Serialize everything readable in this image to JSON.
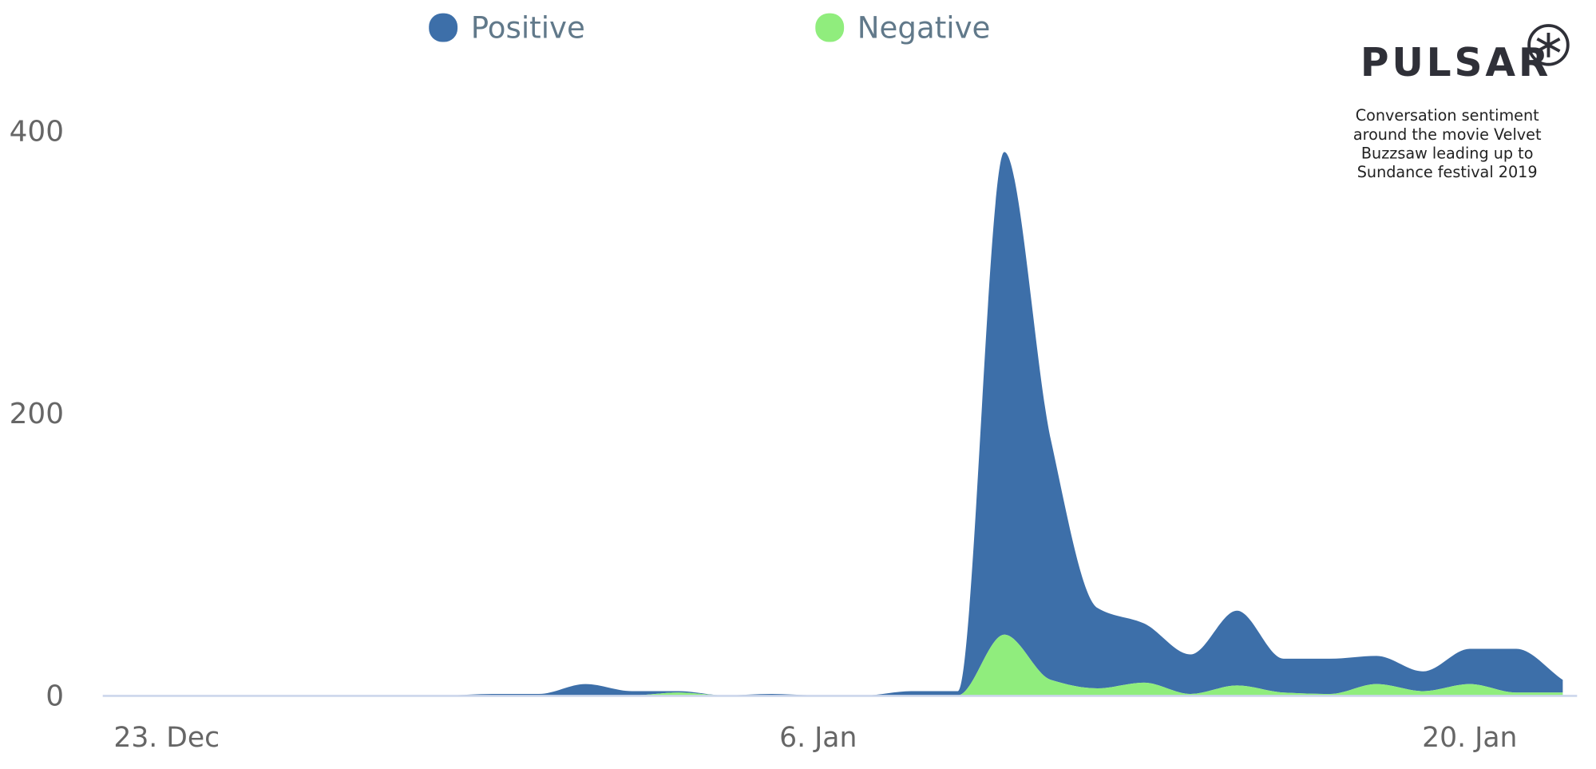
{
  "chart_data": {
    "type": "stacked-area",
    "logo": "PULSAR",
    "subtitle": [
      "Conversation sentiment",
      "around the movie Velvet",
      "Buzzsaw leading up to",
      "Sundance festival 2019"
    ],
    "categories": [
      null,
      "23. Dec",
      null,
      null,
      null,
      null,
      null,
      null,
      null,
      null,
      null,
      null,
      null,
      null,
      null,
      "6. Jan",
      null,
      null,
      null,
      null,
      null,
      null,
      null,
      null,
      null,
      null,
      null,
      null,
      null,
      "20. Jan",
      null,
      null
    ],
    "series": [
      {
        "name": "Positive",
        "color": "#3d6fa9",
        "values": [
          0,
          0,
          0,
          0,
          0,
          0,
          0,
          0,
          1,
          1,
          8,
          3,
          1,
          0,
          1,
          0,
          0,
          3,
          3,
          342,
          170,
          57,
          42,
          28,
          53,
          24,
          25,
          20,
          14,
          25,
          31,
          9
        ]
      },
      {
        "name": "Negative",
        "color": "#90ed7d",
        "values": [
          0,
          0,
          0,
          0,
          0,
          0,
          0,
          0,
          0,
          0,
          0,
          0,
          2,
          0,
          0,
          0,
          0,
          0,
          0,
          43,
          11,
          5,
          9,
          1,
          7,
          2,
          1,
          8,
          3,
          8,
          2,
          2
        ]
      }
    ],
    "ylim": [
      0,
      400
    ],
    "yticks": [
      0,
      200,
      400
    ],
    "grid": false
  }
}
